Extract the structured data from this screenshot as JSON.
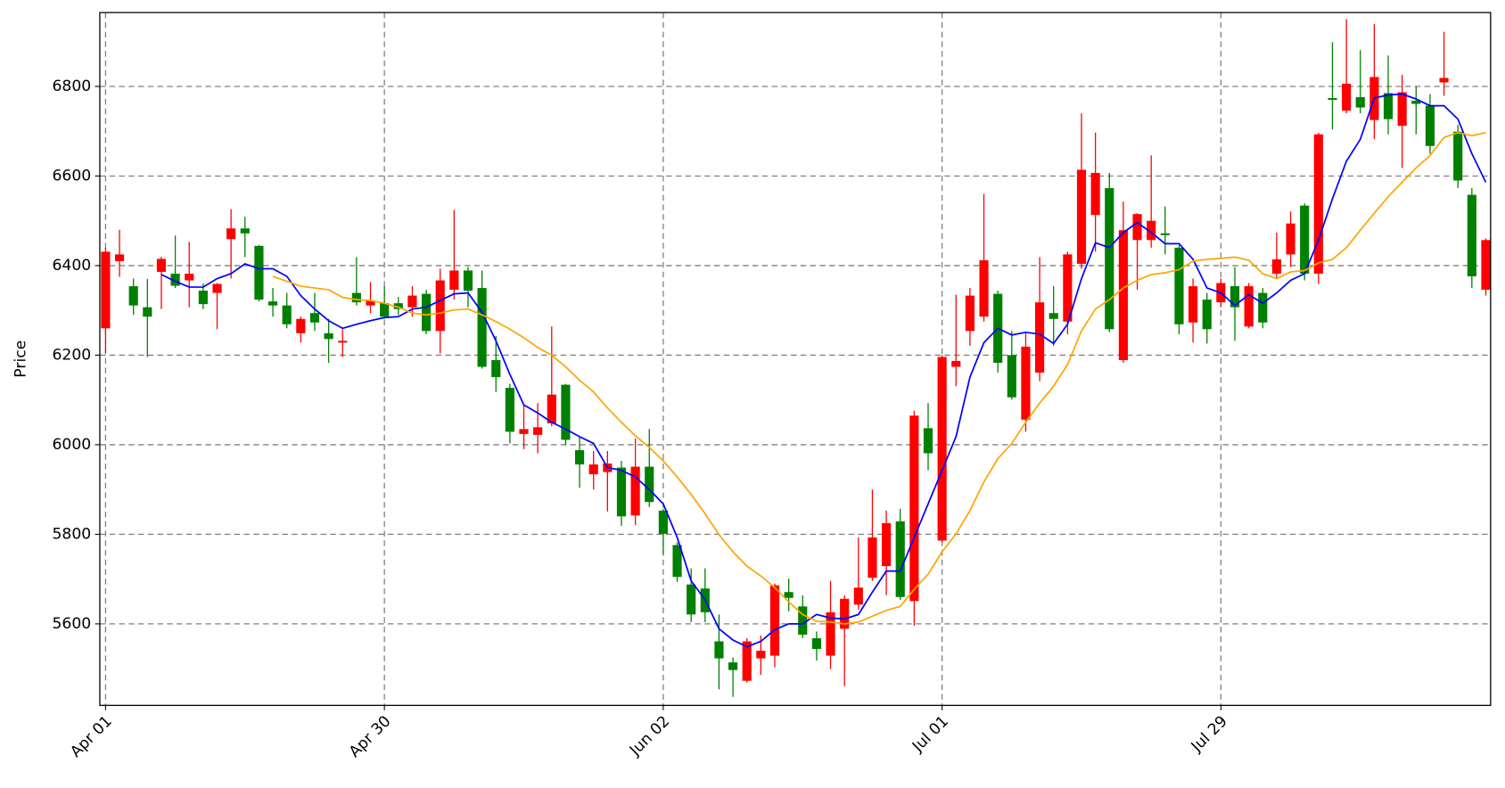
{
  "chart_data": {
    "type": "candlestick",
    "ylabel": "Price",
    "categories": [
      "Apr 01",
      null,
      null,
      null,
      null,
      null,
      null,
      null,
      null,
      null,
      null,
      null,
      null,
      null,
      null,
      null,
      null,
      null,
      null,
      null,
      "Apr 30",
      null,
      null,
      null,
      null,
      null,
      null,
      null,
      null,
      null,
      null,
      null,
      null,
      null,
      null,
      null,
      null,
      null,
      null,
      null,
      "Jun 02",
      null,
      null,
      null,
      null,
      null,
      null,
      null,
      null,
      null,
      null,
      null,
      null,
      null,
      null,
      null,
      null,
      null,
      null,
      null,
      "Jul 01",
      null,
      null,
      null,
      null,
      null,
      null,
      null,
      null,
      null,
      null,
      null,
      null,
      null,
      null,
      null,
      null,
      null,
      null,
      null,
      "Jul 29",
      null,
      null,
      null,
      null,
      null,
      null,
      null,
      null,
      null,
      null,
      null,
      null,
      null,
      null,
      null,
      null,
      null,
      null,
      null
    ],
    "open": [
      6260,
      6410,
      6354,
      6307,
      6386,
      6382,
      6367,
      6344,
      6339,
      6459,
      6483,
      6444,
      6320,
      6311,
      6249,
      6294,
      6249,
      6228,
      6339,
      6311,
      6316,
      6316,
      6307,
      6337,
      6254,
      6346,
      6389,
      6350,
      6189,
      6127,
      6024,
      6022,
      6048,
      6134,
      5988,
      5934,
      5939,
      5949,
      5842,
      5951,
      5853,
      5776,
      5688,
      5679,
      5561,
      5514,
      5473,
      5523,
      5529,
      5671,
      5639,
      5568,
      5529,
      5589,
      5643,
      5703,
      5729,
      5829,
      5651,
      6037,
      5786,
      6174,
      6254,
      6286,
      6337,
      6200,
      6056,
      6161,
      6294,
      6275,
      6404,
      6513,
      6573,
      6189,
      6457,
      6457,
      6472,
      6440,
      6273,
      6324,
      6318,
      6354,
      6264,
      6339,
      6382,
      6425,
      6534,
      6382,
      6774,
      6746,
      6776,
      6725,
      6785,
      6712,
      6768,
      6757,
      6809,
      6699,
      6558,
      6346
    ],
    "high": [
      6440,
      6480,
      6371,
      6370,
      6420,
      6467,
      6453,
      6360,
      6361,
      6526,
      6509,
      6446,
      6350,
      6339,
      6286,
      6339,
      6281,
      6258,
      6419,
      6363,
      6354,
      6330,
      6354,
      6346,
      6393,
      6524,
      6397,
      6389,
      6243,
      6136,
      6089,
      6093,
      6264,
      6136,
      6018,
      5986,
      5986,
      5964,
      6014,
      6035,
      5857,
      5782,
      5724,
      5724,
      5621,
      5525,
      5568,
      5574,
      5690,
      5701,
      5664,
      5583,
      5696,
      5664,
      5793,
      5900,
      5853,
      5857,
      6076,
      6093,
      6200,
      6335,
      6350,
      6560,
      6344,
      6254,
      6249,
      6419,
      6354,
      6431,
      6740,
      6697,
      6607,
      6543,
      6517,
      6646,
      6532,
      6446,
      6371,
      6339,
      6371,
      6397,
      6361,
      6350,
      6474,
      6521,
      6539,
      6697,
      6899,
      6950,
      6881,
      6939,
      6869,
      6826,
      6800,
      6783,
      6922,
      6714,
      6573,
      6461
    ],
    "low": [
      6205,
      6375,
      6290,
      6196,
      6303,
      6350,
      6307,
      6303,
      6258,
      6371,
      6419,
      6320,
      6286,
      6260,
      6228,
      6254,
      6183,
      6196,
      6311,
      6294,
      6281,
      6290,
      6286,
      6247,
      6204,
      6324,
      6307,
      6170,
      6118,
      6003,
      5990,
      5981,
      6041,
      5999,
      5904,
      5900,
      5851,
      5819,
      5821,
      5861,
      5754,
      5694,
      5604,
      5604,
      5454,
      5437,
      5469,
      5486,
      5503,
      5628,
      5568,
      5518,
      5499,
      5461,
      5632,
      5696,
      5664,
      5654,
      5596,
      5943,
      5782,
      6131,
      6221,
      6275,
      6161,
      6101,
      6029,
      6142,
      6221,
      6247,
      6393,
      6431,
      6251,
      6183,
      6346,
      6440,
      6425,
      6247,
      6228,
      6226,
      6307,
      6232,
      6260,
      6260,
      6371,
      6397,
      6367,
      6359,
      6704,
      6740,
      6740,
      6682,
      6693,
      6618,
      6693,
      6650,
      6779,
      6573,
      6350,
      6333
    ],
    "close": [
      6431,
      6425,
      6311,
      6286,
      6415,
      6355,
      6382,
      6314,
      6359,
      6483,
      6472,
      6324,
      6311,
      6269,
      6281,
      6273,
      6236,
      6232,
      6318,
      6322,
      6286,
      6303,
      6333,
      6254,
      6367,
      6389,
      6344,
      6174,
      6151,
      6029,
      6035,
      6039,
      6112,
      6011,
      5956,
      5956,
      5958,
      5840,
      5951,
      5872,
      5801,
      5705,
      5621,
      5626,
      5523,
      5497,
      5561,
      5540,
      5686,
      5658,
      5576,
      5544,
      5626,
      5656,
      5681,
      5793,
      5825,
      5660,
      6065,
      5981,
      6196,
      6187,
      6333,
      6412,
      6183,
      6106,
      6219,
      6318,
      6281,
      6425,
      6614,
      6607,
      6258,
      6479,
      6515,
      6500,
      6468,
      6269,
      6354,
      6258,
      6361,
      6307,
      6354,
      6273,
      6414,
      6494,
      6382,
      6693,
      6770,
      6806,
      6753,
      6821,
      6727,
      6787,
      6761,
      6667,
      6819,
      6590,
      6376,
      6457
    ],
    "up_color": "#ff0000",
    "down_color": "#008000",
    "lines": [
      {
        "color": "#0000ff",
        "values": [
          null,
          null,
          null,
          null,
          6380,
          6365,
          6352,
          6352,
          6371,
          6382,
          6404,
          6393,
          6393,
          6376,
          6333,
          6303,
          6277,
          6260,
          6269,
          6277,
          6284,
          6286,
          6303,
          6307,
          6322,
          6337,
          6339,
          6296,
          6232,
          6157,
          6089,
          6071,
          6050,
          6035,
          6018,
          6003,
          5949,
          5943,
          5928,
          5900,
          5868,
          5793,
          5696,
          5654,
          5589,
          5564,
          5549,
          5561,
          5587,
          5600,
          5600,
          5621,
          5613,
          5611,
          5621,
          5671,
          5718,
          5718,
          5793,
          5868,
          5943,
          6018,
          6151,
          6228,
          6260,
          6245,
          6251,
          6247,
          6226,
          6269,
          6371,
          6451,
          6440,
          6474,
          6496,
          6474,
          6449,
          6449,
          6414,
          6350,
          6339,
          6311,
          6335,
          6316,
          6339,
          6367,
          6382,
          6457,
          6549,
          6633,
          6682,
          6774,
          6781,
          6783,
          6772,
          6757,
          6757,
          6727,
          6650,
          6586
        ]
      },
      {
        "color": "#ffa500",
        "values": [
          null,
          null,
          null,
          null,
          null,
          null,
          null,
          null,
          null,
          null,
          null,
          null,
          6376,
          6365,
          6354,
          6350,
          6346,
          6329,
          6324,
          6322,
          6316,
          6307,
          6294,
          6290,
          6294,
          6301,
          6303,
          6290,
          6275,
          6258,
          6239,
          6217,
          6200,
          6174,
          6144,
          6118,
          6082,
          6050,
          6020,
          5994,
          5964,
          5928,
          5889,
          5846,
          5799,
          5761,
          5729,
          5707,
          5681,
          5649,
          5621,
          5606,
          5604,
          5600,
          5604,
          5617,
          5630,
          5639,
          5677,
          5711,
          5761,
          5801,
          5853,
          5917,
          5969,
          6003,
          6050,
          6093,
          6131,
          6179,
          6254,
          6303,
          6324,
          6350,
          6367,
          6380,
          6384,
          6391,
          6410,
          6414,
          6416,
          6419,
          6412,
          6382,
          6371,
          6386,
          6389,
          6406,
          6414,
          6440,
          6479,
          6517,
          6554,
          6586,
          6618,
          6646,
          6686,
          6697,
          6690,
          6697
        ]
      }
    ],
    "ylim": [
      5418,
      6965
    ],
    "yticks": [
      5600,
      5800,
      6000,
      6200,
      6400,
      6600,
      6800
    ],
    "grid": true
  }
}
